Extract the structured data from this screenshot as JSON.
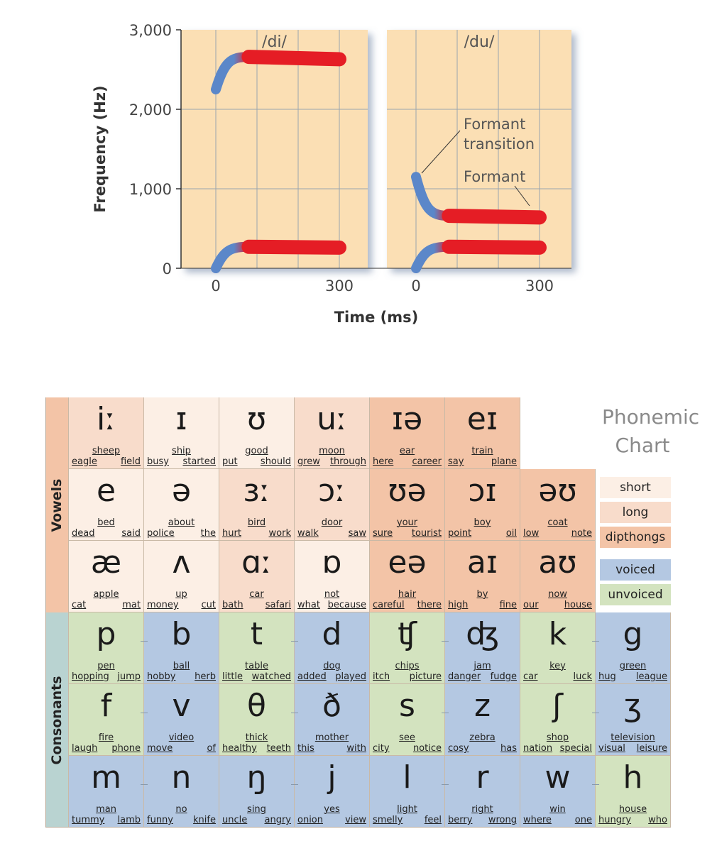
{
  "spectrogram": {
    "y_axis_label": "Frequency (Hz)",
    "x_axis_label": "Time (ms)",
    "y_ticks": [
      "3,000",
      "2,000",
      "1,000",
      "0"
    ],
    "x_ticks": [
      "0",
      "300"
    ],
    "panels": [
      {
        "label": "/di/"
      },
      {
        "label": "/du/"
      }
    ],
    "annotations": [
      "Formant",
      "transition",
      "Formant"
    ],
    "colors": {
      "background": "#fbdfb4",
      "grid": "#9aa4ae",
      "formant": "#e51d25",
      "transition": "#5b87c9"
    }
  },
  "chart_data": {
    "type": "line",
    "xlabel": "Time (ms)",
    "ylabel": "Frequency (Hz)",
    "ylim": [
      0,
      3000
    ],
    "panels": [
      {
        "name": "/di/",
        "series": [
          {
            "points": [
              [
                0,
                2250
              ],
              [
                80,
                2660
              ],
              [
                300,
                2630
              ]
            ]
          },
          {
            "points": [
              [
                0,
                0
              ],
              [
                80,
                270
              ],
              [
                300,
                260
              ]
            ]
          }
        ]
      },
      {
        "name": "/du/",
        "series": [
          {
            "points": [
              [
                0,
                1150
              ],
              [
                80,
                660
              ],
              [
                300,
                640
              ]
            ]
          },
          {
            "points": [
              [
                0,
                0
              ],
              [
                80,
                270
              ],
              [
                300,
                260
              ]
            ]
          }
        ]
      }
    ]
  },
  "phonemic_chart": {
    "title_line1": "Phonemic",
    "title_line2": "Chart",
    "vowels_label": "Vowels",
    "consonants_label": "Consonants",
    "legend": [
      "short",
      "long",
      "dipthongs",
      "voiced",
      "unvoiced"
    ],
    "vowel_rows": [
      [
        {
          "sym": "iː",
          "w1": "sheep",
          "w2": "eagle",
          "w3": "field",
          "type": "long"
        },
        {
          "sym": "ɪ",
          "w1": "ship",
          "w2": "busy",
          "w3": "started",
          "type": "short"
        },
        {
          "sym": "ʊ",
          "w1": "good",
          "w2": "put",
          "w3": "should",
          "type": "short"
        },
        {
          "sym": "uː",
          "w1": "moon",
          "w2": "grew",
          "w3": "through",
          "type": "long"
        },
        {
          "sym": "ɪə",
          "w1": "ear",
          "w2": "here",
          "w3": "career",
          "type": "diph"
        },
        {
          "sym": "eɪ",
          "w1": "train",
          "w2": "say",
          "w3": "plane",
          "type": "diph"
        }
      ],
      [
        {
          "sym": "e",
          "w1": "bed",
          "w2": "dead",
          "w3": "said",
          "type": "short"
        },
        {
          "sym": "ə",
          "w1": "about",
          "w2": "police",
          "w3": "the",
          "type": "short"
        },
        {
          "sym": "ɜː",
          "w1": "bird",
          "w2": "hurt",
          "w3": "work",
          "type": "long"
        },
        {
          "sym": "ɔː",
          "w1": "door",
          "w2": "walk",
          "w3": "saw",
          "type": "long"
        },
        {
          "sym": "ʊə",
          "w1": "your",
          "w2": "sure",
          "w3": "tourist",
          "type": "diph"
        },
        {
          "sym": "ɔɪ",
          "w1": "boy",
          "w2": "point",
          "w3": "oil",
          "type": "diph"
        },
        {
          "sym": "əʊ",
          "w1": "coat",
          "w2": "low",
          "w3": "note",
          "type": "diph"
        }
      ],
      [
        {
          "sym": "æ",
          "w1": "apple",
          "w2": "cat",
          "w3": "mat",
          "type": "short"
        },
        {
          "sym": "ʌ",
          "w1": "up",
          "w2": "money",
          "w3": "cut",
          "type": "short"
        },
        {
          "sym": "ɑː",
          "w1": "car",
          "w2": "bath",
          "w3": "safari",
          "type": "long"
        },
        {
          "sym": "ɒ",
          "w1": "not",
          "w2": "what",
          "w3": "because",
          "type": "short"
        },
        {
          "sym": "eə",
          "w1": "hair",
          "w2": "careful",
          "w3": "there",
          "type": "diph"
        },
        {
          "sym": "aɪ",
          "w1": "by",
          "w2": "high",
          "w3": "fine",
          "type": "diph"
        },
        {
          "sym": "aʊ",
          "w1": "now",
          "w2": "our",
          "w3": "house",
          "type": "diph"
        }
      ]
    ],
    "consonant_rows": [
      [
        {
          "sym": "p",
          "w1": "pen",
          "w2": "hopping",
          "w3": "jump",
          "type": "unvoiced"
        },
        {
          "sym": "b",
          "w1": "ball",
          "w2": "hobby",
          "w3": "herb",
          "type": "voiced"
        },
        {
          "sym": "t",
          "w1": "table",
          "w2": "little",
          "w3": "watched",
          "type": "unvoiced"
        },
        {
          "sym": "d",
          "w1": "dog",
          "w2": "added",
          "w3": "played",
          "type": "voiced"
        },
        {
          "sym": "ʧ",
          "w1": "chips",
          "w2": "itch",
          "w3": "picture",
          "type": "unvoiced"
        },
        {
          "sym": "ʤ",
          "w1": "jam",
          "w2": "danger",
          "w3": "fudge",
          "type": "voiced"
        },
        {
          "sym": "k",
          "w1": "key",
          "w2": "car",
          "w3": "luck",
          "type": "unvoiced"
        },
        {
          "sym": "g",
          "w1": "green",
          "w2": "hug",
          "w3": "league",
          "type": "voiced"
        }
      ],
      [
        {
          "sym": "f",
          "w1": "fire",
          "w2": "laugh",
          "w3": "phone",
          "type": "unvoiced"
        },
        {
          "sym": "v",
          "w1": "video",
          "w2": "move",
          "w3": "of",
          "type": "voiced"
        },
        {
          "sym": "θ",
          "w1": "thick",
          "w2": "healthy",
          "w3": "teeth",
          "type": "unvoiced"
        },
        {
          "sym": "ð",
          "w1": "mother",
          "w2": "this",
          "w3": "with",
          "type": "voiced"
        },
        {
          "sym": "s",
          "w1": "see",
          "w2": "city",
          "w3": "notice",
          "type": "unvoiced"
        },
        {
          "sym": "z",
          "w1": "zebra",
          "w2": "cosy",
          "w3": "has",
          "type": "voiced"
        },
        {
          "sym": "ʃ",
          "w1": "shop",
          "w2": "nation",
          "w3": "special",
          "type": "unvoiced"
        },
        {
          "sym": "ʒ",
          "w1": "television",
          "w2": "visual",
          "w3": "leisure",
          "type": "voiced"
        }
      ],
      [
        {
          "sym": "m",
          "w1": "man",
          "w2": "tummy",
          "w3": "lamb",
          "type": "voiced"
        },
        {
          "sym": "n",
          "w1": "no",
          "w2": "funny",
          "w3": "knife",
          "type": "voiced"
        },
        {
          "sym": "ŋ",
          "w1": "sing",
          "w2": "uncle",
          "w3": "angry",
          "type": "voiced"
        },
        {
          "sym": "j",
          "w1": "yes",
          "w2": "onion",
          "w3": "view",
          "type": "voiced"
        },
        {
          "sym": "l",
          "w1": "light",
          "w2": "smelly",
          "w3": "feel",
          "type": "voiced"
        },
        {
          "sym": "r",
          "w1": "right",
          "w2": "berry",
          "w3": "wrong",
          "type": "voiced"
        },
        {
          "sym": "w",
          "w1": "win",
          "w2": "where",
          "w3": "one",
          "type": "voiced"
        },
        {
          "sym": "h",
          "w1": "house",
          "w2": "hungry",
          "w3": "who",
          "type": "unvoiced"
        }
      ]
    ]
  }
}
